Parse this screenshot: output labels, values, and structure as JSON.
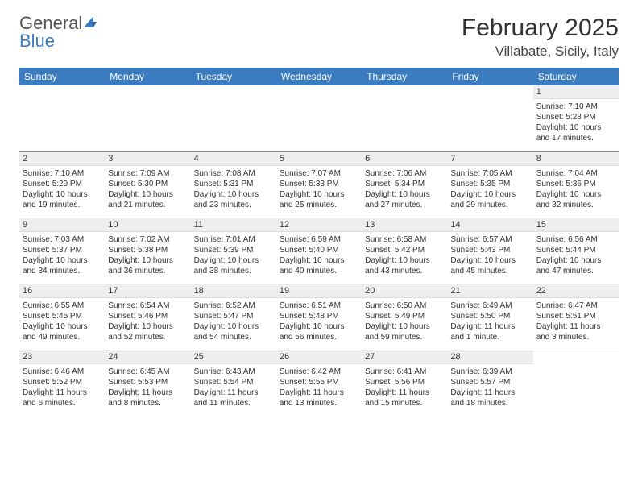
{
  "logo": {
    "textA": "General",
    "textB": "Blue"
  },
  "title": "February 2025",
  "location": "Villabate, Sicily, Italy",
  "dayHeaders": [
    "Sunday",
    "Monday",
    "Tuesday",
    "Wednesday",
    "Thursday",
    "Friday",
    "Saturday"
  ],
  "colors": {
    "headerBg": "#3b7bbf",
    "dayBarBg": "#eceeef",
    "text": "#333333",
    "logoBlue": "#3b7bbf",
    "border": "#888888"
  },
  "weeks": [
    [
      {
        "n": "",
        "sunrise": "",
        "sunset": "",
        "daylight": ""
      },
      {
        "n": "",
        "sunrise": "",
        "sunset": "",
        "daylight": ""
      },
      {
        "n": "",
        "sunrise": "",
        "sunset": "",
        "daylight": ""
      },
      {
        "n": "",
        "sunrise": "",
        "sunset": "",
        "daylight": ""
      },
      {
        "n": "",
        "sunrise": "",
        "sunset": "",
        "daylight": ""
      },
      {
        "n": "",
        "sunrise": "",
        "sunset": "",
        "daylight": ""
      },
      {
        "n": "1",
        "sunrise": "Sunrise: 7:10 AM",
        "sunset": "Sunset: 5:28 PM",
        "daylight": "Daylight: 10 hours and 17 minutes."
      }
    ],
    [
      {
        "n": "2",
        "sunrise": "Sunrise: 7:10 AM",
        "sunset": "Sunset: 5:29 PM",
        "daylight": "Daylight: 10 hours and 19 minutes."
      },
      {
        "n": "3",
        "sunrise": "Sunrise: 7:09 AM",
        "sunset": "Sunset: 5:30 PM",
        "daylight": "Daylight: 10 hours and 21 minutes."
      },
      {
        "n": "4",
        "sunrise": "Sunrise: 7:08 AM",
        "sunset": "Sunset: 5:31 PM",
        "daylight": "Daylight: 10 hours and 23 minutes."
      },
      {
        "n": "5",
        "sunrise": "Sunrise: 7:07 AM",
        "sunset": "Sunset: 5:33 PM",
        "daylight": "Daylight: 10 hours and 25 minutes."
      },
      {
        "n": "6",
        "sunrise": "Sunrise: 7:06 AM",
        "sunset": "Sunset: 5:34 PM",
        "daylight": "Daylight: 10 hours and 27 minutes."
      },
      {
        "n": "7",
        "sunrise": "Sunrise: 7:05 AM",
        "sunset": "Sunset: 5:35 PM",
        "daylight": "Daylight: 10 hours and 29 minutes."
      },
      {
        "n": "8",
        "sunrise": "Sunrise: 7:04 AM",
        "sunset": "Sunset: 5:36 PM",
        "daylight": "Daylight: 10 hours and 32 minutes."
      }
    ],
    [
      {
        "n": "9",
        "sunrise": "Sunrise: 7:03 AM",
        "sunset": "Sunset: 5:37 PM",
        "daylight": "Daylight: 10 hours and 34 minutes."
      },
      {
        "n": "10",
        "sunrise": "Sunrise: 7:02 AM",
        "sunset": "Sunset: 5:38 PM",
        "daylight": "Daylight: 10 hours and 36 minutes."
      },
      {
        "n": "11",
        "sunrise": "Sunrise: 7:01 AM",
        "sunset": "Sunset: 5:39 PM",
        "daylight": "Daylight: 10 hours and 38 minutes."
      },
      {
        "n": "12",
        "sunrise": "Sunrise: 6:59 AM",
        "sunset": "Sunset: 5:40 PM",
        "daylight": "Daylight: 10 hours and 40 minutes."
      },
      {
        "n": "13",
        "sunrise": "Sunrise: 6:58 AM",
        "sunset": "Sunset: 5:42 PM",
        "daylight": "Daylight: 10 hours and 43 minutes."
      },
      {
        "n": "14",
        "sunrise": "Sunrise: 6:57 AM",
        "sunset": "Sunset: 5:43 PM",
        "daylight": "Daylight: 10 hours and 45 minutes."
      },
      {
        "n": "15",
        "sunrise": "Sunrise: 6:56 AM",
        "sunset": "Sunset: 5:44 PM",
        "daylight": "Daylight: 10 hours and 47 minutes."
      }
    ],
    [
      {
        "n": "16",
        "sunrise": "Sunrise: 6:55 AM",
        "sunset": "Sunset: 5:45 PM",
        "daylight": "Daylight: 10 hours and 49 minutes."
      },
      {
        "n": "17",
        "sunrise": "Sunrise: 6:54 AM",
        "sunset": "Sunset: 5:46 PM",
        "daylight": "Daylight: 10 hours and 52 minutes."
      },
      {
        "n": "18",
        "sunrise": "Sunrise: 6:52 AM",
        "sunset": "Sunset: 5:47 PM",
        "daylight": "Daylight: 10 hours and 54 minutes."
      },
      {
        "n": "19",
        "sunrise": "Sunrise: 6:51 AM",
        "sunset": "Sunset: 5:48 PM",
        "daylight": "Daylight: 10 hours and 56 minutes."
      },
      {
        "n": "20",
        "sunrise": "Sunrise: 6:50 AM",
        "sunset": "Sunset: 5:49 PM",
        "daylight": "Daylight: 10 hours and 59 minutes."
      },
      {
        "n": "21",
        "sunrise": "Sunrise: 6:49 AM",
        "sunset": "Sunset: 5:50 PM",
        "daylight": "Daylight: 11 hours and 1 minute."
      },
      {
        "n": "22",
        "sunrise": "Sunrise: 6:47 AM",
        "sunset": "Sunset: 5:51 PM",
        "daylight": "Daylight: 11 hours and 3 minutes."
      }
    ],
    [
      {
        "n": "23",
        "sunrise": "Sunrise: 6:46 AM",
        "sunset": "Sunset: 5:52 PM",
        "daylight": "Daylight: 11 hours and 6 minutes."
      },
      {
        "n": "24",
        "sunrise": "Sunrise: 6:45 AM",
        "sunset": "Sunset: 5:53 PM",
        "daylight": "Daylight: 11 hours and 8 minutes."
      },
      {
        "n": "25",
        "sunrise": "Sunrise: 6:43 AM",
        "sunset": "Sunset: 5:54 PM",
        "daylight": "Daylight: 11 hours and 11 minutes."
      },
      {
        "n": "26",
        "sunrise": "Sunrise: 6:42 AM",
        "sunset": "Sunset: 5:55 PM",
        "daylight": "Daylight: 11 hours and 13 minutes."
      },
      {
        "n": "27",
        "sunrise": "Sunrise: 6:41 AM",
        "sunset": "Sunset: 5:56 PM",
        "daylight": "Daylight: 11 hours and 15 minutes."
      },
      {
        "n": "28",
        "sunrise": "Sunrise: 6:39 AM",
        "sunset": "Sunset: 5:57 PM",
        "daylight": "Daylight: 11 hours and 18 minutes."
      },
      {
        "n": "",
        "sunrise": "",
        "sunset": "",
        "daylight": ""
      }
    ]
  ]
}
